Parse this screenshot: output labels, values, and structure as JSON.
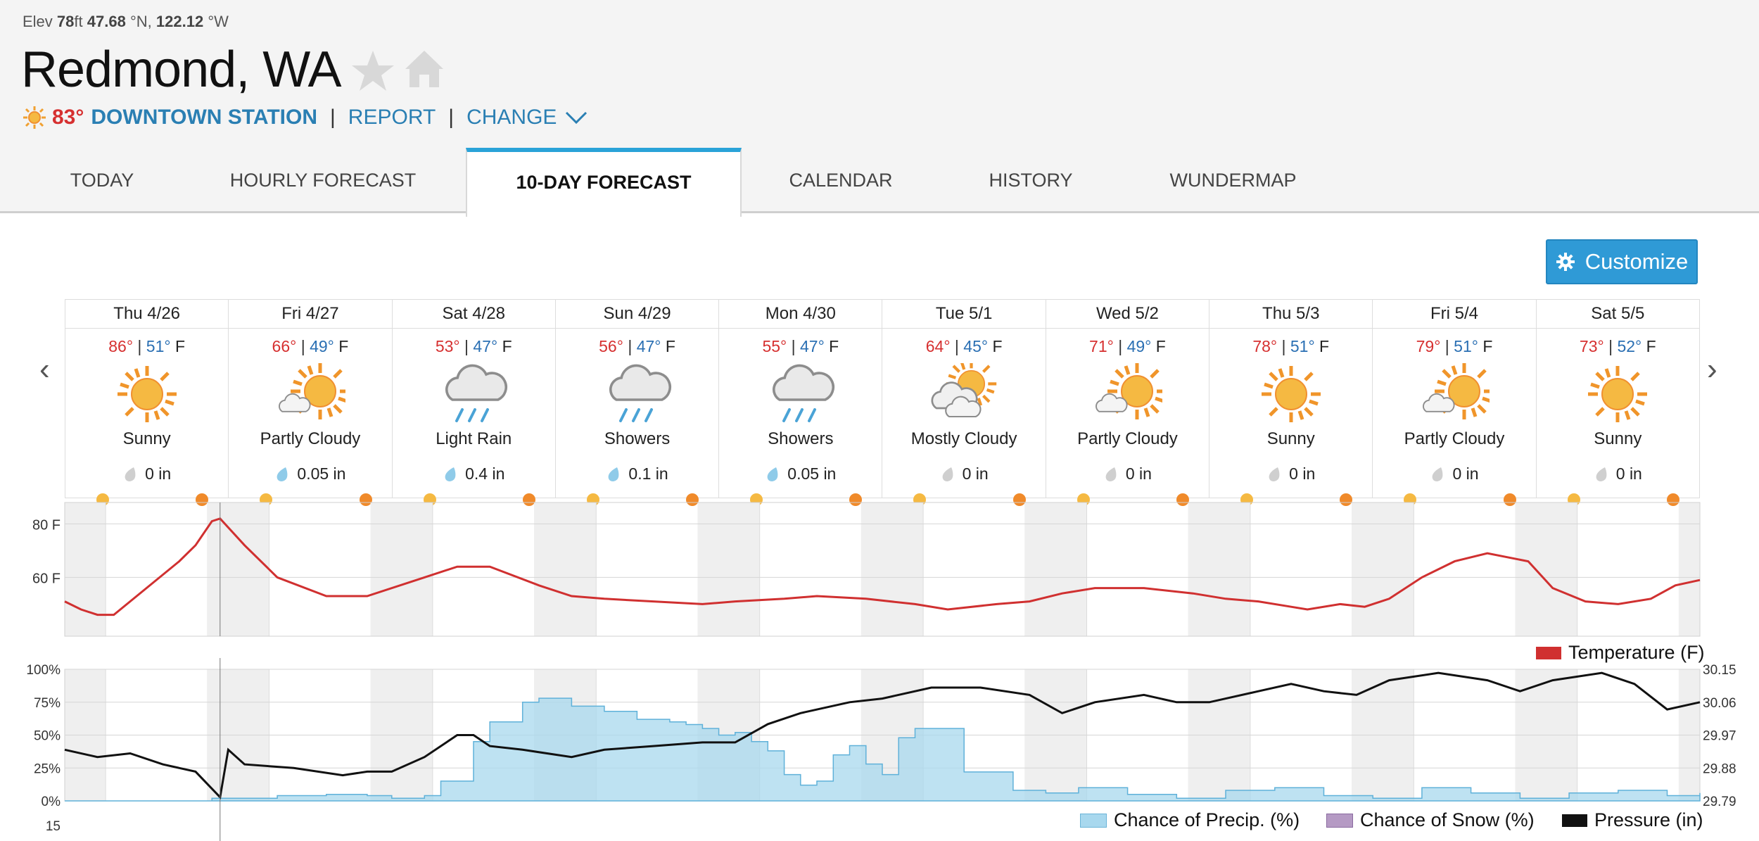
{
  "header": {
    "elev_label": "Elev",
    "elev_value": "78",
    "elev_unit": "ft",
    "lat": "47.68",
    "lat_unit": "°N,",
    "lon": "122.12",
    "lon_unit": "°W",
    "city": "Redmond, WA",
    "current_temp": "83°",
    "station": "DOWNTOWN STATION",
    "sep": "|",
    "report": "REPORT",
    "change": "CHANGE"
  },
  "tabs": [
    {
      "label": "TODAY",
      "active": false
    },
    {
      "label": "HOURLY FORECAST",
      "active": false
    },
    {
      "label": "10-DAY FORECAST",
      "active": true
    },
    {
      "label": "CALENDAR",
      "active": false
    },
    {
      "label": "HISTORY",
      "active": false
    },
    {
      "label": "WUNDERMAP",
      "active": false
    }
  ],
  "customize_label": "Customize",
  "days": [
    {
      "name": "Thu 4/26",
      "hi": "86°",
      "lo": "51°",
      "unit": "F",
      "icon": "sunny",
      "cond": "Sunny",
      "precip": "0 in",
      "drop": "gray"
    },
    {
      "name": "Fri 4/27",
      "hi": "66°",
      "lo": "49°",
      "unit": "F",
      "icon": "partly-cloudy",
      "cond": "Partly Cloudy",
      "precip": "0.05 in",
      "drop": "blue"
    },
    {
      "name": "Sat 4/28",
      "hi": "53°",
      "lo": "47°",
      "unit": "F",
      "icon": "rain",
      "cond": "Light Rain",
      "precip": "0.4 in",
      "drop": "blue"
    },
    {
      "name": "Sun 4/29",
      "hi": "56°",
      "lo": "47°",
      "unit": "F",
      "icon": "rain",
      "cond": "Showers",
      "precip": "0.1 in",
      "drop": "blue"
    },
    {
      "name": "Mon 4/30",
      "hi": "55°",
      "lo": "47°",
      "unit": "F",
      "icon": "rain",
      "cond": "Showers",
      "precip": "0.05 in",
      "drop": "blue"
    },
    {
      "name": "Tue 5/1",
      "hi": "64°",
      "lo": "45°",
      "unit": "F",
      "icon": "mostly-cloudy",
      "cond": "Mostly Cloudy",
      "precip": "0 in",
      "drop": "gray"
    },
    {
      "name": "Wed 5/2",
      "hi": "71°",
      "lo": "49°",
      "unit": "F",
      "icon": "partly-cloudy",
      "cond": "Partly Cloudy",
      "precip": "0 in",
      "drop": "gray"
    },
    {
      "name": "Thu 5/3",
      "hi": "78°",
      "lo": "51°",
      "unit": "F",
      "icon": "sunny",
      "cond": "Sunny",
      "precip": "0 in",
      "drop": "gray"
    },
    {
      "name": "Fri 5/4",
      "hi": "79°",
      "lo": "51°",
      "unit": "F",
      "icon": "partly-cloudy",
      "cond": "Partly Cloudy",
      "precip": "0 in",
      "drop": "gray"
    },
    {
      "name": "Sat 5/5",
      "hi": "73°",
      "lo": "52°",
      "unit": "F",
      "icon": "sunny",
      "cond": "Sunny",
      "precip": "0 in",
      "drop": "gray"
    }
  ],
  "colors": {
    "hi": "#d63030",
    "lo": "#2a6fb3",
    "accent": "#2aa3d8",
    "temperature": "#d03030",
    "precip": "#a8d8ee",
    "snow": "#b59ac4",
    "pressure": "#111111"
  },
  "chart_data": [
    {
      "type": "line",
      "yticks": [
        "80 F",
        "60 F"
      ],
      "ylim": [
        38,
        88
      ],
      "x_range_days": [
        0,
        10
      ],
      "grid": true,
      "legend": [
        {
          "name": "Temperature (F)"
        }
      ],
      "series": [
        {
          "name": "Temperature (F)",
          "x": [
            0,
            0.1,
            0.2,
            0.3,
            0.5,
            0.7,
            0.8,
            0.9,
            0.95,
            1.1,
            1.3,
            1.6,
            1.85,
            2.2,
            2.4,
            2.6,
            2.9,
            3.1,
            3.3,
            3.6,
            3.9,
            4.1,
            4.4,
            4.6,
            4.9,
            5.2,
            5.4,
            5.7,
            5.9,
            6.1,
            6.3,
            6.6,
            6.9,
            7.1,
            7.3,
            7.5,
            7.6,
            7.8,
            7.95,
            8.1,
            8.3,
            8.5,
            8.7,
            8.95,
            9.1,
            9.3,
            9.5,
            9.7,
            9.85,
            10
          ],
          "y": [
            51,
            48,
            46,
            46,
            56,
            66,
            72,
            81,
            82,
            72,
            60,
            53,
            53,
            60,
            64,
            64,
            57,
            53,
            52,
            51,
            50,
            51,
            52,
            53,
            52,
            50,
            48,
            50,
            51,
            54,
            56,
            56,
            54,
            52,
            51,
            49,
            48,
            50,
            49,
            52,
            60,
            66,
            69,
            66,
            56,
            51,
            50,
            52,
            57,
            59
          ]
        }
      ]
    },
    {
      "type": "area",
      "yticks_left": [
        "100%",
        "75%",
        "50%",
        "25%",
        "0%"
      ],
      "yticks_right": [
        "30.15",
        "30.06",
        "29.97",
        "29.88",
        "29.79"
      ],
      "ylim_left": [
        0,
        100
      ],
      "ylim_right": [
        29.79,
        30.15
      ],
      "extra_tick": "15",
      "x_range_days": [
        0,
        10
      ],
      "legend": [
        {
          "name": "Chance of Precip. (%)"
        },
        {
          "name": "Chance of Snow (%)"
        },
        {
          "name": "Pressure (in)"
        }
      ],
      "series": [
        {
          "name": "Chance of Precip. (%)",
          "x": [
            0,
            0.6,
            0.9,
            1.3,
            1.6,
            1.85,
            2.0,
            2.2,
            2.3,
            2.5,
            2.6,
            2.8,
            2.9,
            3.1,
            3.3,
            3.5,
            3.7,
            3.8,
            3.9,
            4.0,
            4.1,
            4.2,
            4.3,
            4.4,
            4.5,
            4.6,
            4.7,
            4.8,
            4.9,
            5.0,
            5.1,
            5.2,
            5.5,
            5.8,
            6.0,
            6.2,
            6.5,
            6.8,
            7.1,
            7.4,
            7.7,
            8.0,
            8.3,
            8.6,
            8.9,
            9.2,
            9.5,
            9.8,
            10
          ],
          "y": [
            0,
            0,
            2,
            4,
            5,
            4,
            2,
            4,
            15,
            45,
            60,
            75,
            78,
            72,
            68,
            62,
            60,
            58,
            55,
            50,
            52,
            45,
            38,
            20,
            12,
            15,
            35,
            42,
            28,
            20,
            48,
            55,
            22,
            8,
            6,
            10,
            5,
            2,
            8,
            10,
            4,
            2,
            10,
            6,
            2,
            6,
            8,
            4,
            6
          ]
        },
        {
          "name": "Chance of Snow (%)",
          "x": [
            0,
            10
          ],
          "y": [
            0,
            0
          ]
        },
        {
          "name": "Pressure (in)",
          "x": [
            0,
            0.2,
            0.4,
            0.6,
            0.8,
            0.95,
            1.0,
            1.1,
            1.4,
            1.7,
            1.85,
            2.0,
            2.2,
            2.4,
            2.5,
            2.6,
            2.8,
            3.1,
            3.3,
            3.6,
            3.9,
            4.1,
            4.3,
            4.5,
            4.8,
            5.0,
            5.3,
            5.6,
            5.9,
            6.1,
            6.3,
            6.6,
            6.8,
            7.0,
            7.3,
            7.5,
            7.7,
            7.9,
            8.1,
            8.4,
            8.7,
            8.9,
            9.1,
            9.4,
            9.6,
            9.8,
            10
          ],
          "y": [
            29.93,
            29.91,
            29.92,
            29.89,
            29.87,
            29.8,
            29.93,
            29.89,
            29.88,
            29.86,
            29.87,
            29.87,
            29.91,
            29.97,
            29.97,
            29.94,
            29.93,
            29.91,
            29.93,
            29.94,
            29.95,
            29.95,
            30.0,
            30.03,
            30.06,
            30.07,
            30.1,
            30.1,
            30.08,
            30.03,
            30.06,
            30.08,
            30.06,
            30.06,
            30.09,
            30.11,
            30.09,
            30.08,
            30.12,
            30.14,
            30.12,
            30.09,
            30.12,
            30.14,
            30.11,
            30.04,
            30.06
          ]
        }
      ]
    }
  ]
}
